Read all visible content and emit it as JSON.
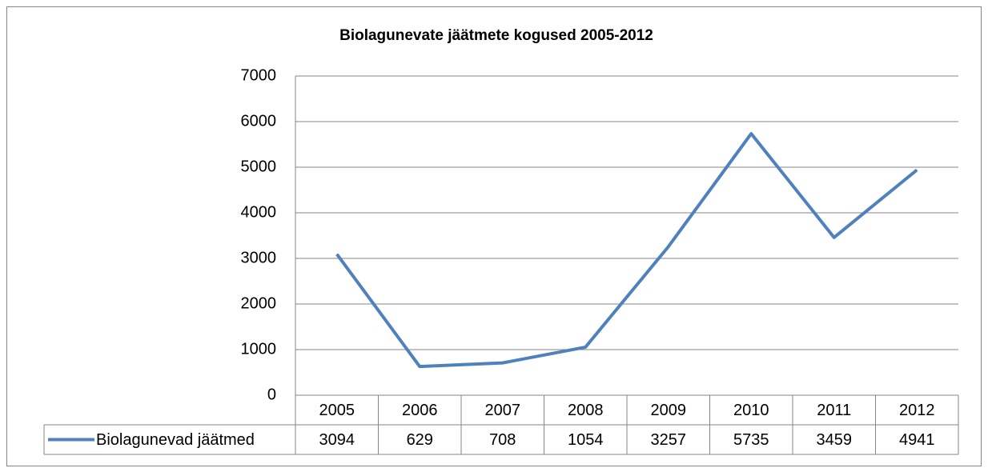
{
  "chart_data": {
    "type": "line",
    "title": "Biolagunevate jäätmete kogused 2005-2012",
    "categories": [
      "2005",
      "2006",
      "2007",
      "2008",
      "2009",
      "2010",
      "2011",
      "2012"
    ],
    "series": [
      {
        "name": "Biolagunevad jäätmed",
        "color": "#4f81bd",
        "values": [
          3094,
          629,
          708,
          1054,
          3257,
          5735,
          3459,
          4941
        ]
      }
    ],
    "ylim": [
      0,
      7000
    ],
    "yticks": [
      0,
      1000,
      2000,
      3000,
      4000,
      5000,
      6000,
      7000
    ],
    "grid": true
  }
}
